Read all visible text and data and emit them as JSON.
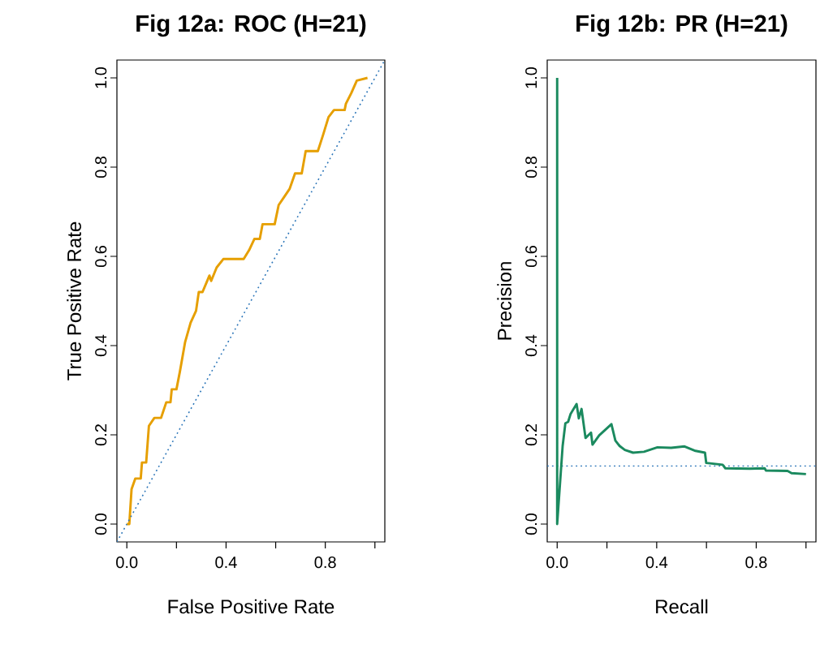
{
  "chart_data": [
    {
      "type": "line",
      "title": "Fig 12a: ROC (H=21)",
      "xlabel": "False Positive Rate",
      "ylabel": "True Positive Rate",
      "xlim": [
        -0.04,
        1.04
      ],
      "ylim": [
        -0.04,
        1.04
      ],
      "xticks": [
        {
          "value": 0,
          "label": "0.0"
        },
        {
          "value": 0.2,
          "label": null
        },
        {
          "value": 0.4,
          "label": "0.4"
        },
        {
          "value": 0.6,
          "label": null
        },
        {
          "value": 0.8,
          "label": "0.8"
        },
        {
          "value": 1,
          "label": null
        }
      ],
      "yticks": [
        {
          "value": 0,
          "label": "0.0"
        },
        {
          "value": 0.2,
          "label": "0.2"
        },
        {
          "value": 0.4,
          "label": "0.4"
        },
        {
          "value": 0.6,
          "label": "0.6"
        },
        {
          "value": 0.8,
          "label": "0.8"
        },
        {
          "value": 1,
          "label": "1.0"
        }
      ],
      "series": [
        {
          "color": "#e69f00",
          "line_style": "solid",
          "x": [
            0,
            0.01,
            0.019,
            0.034,
            0.056,
            0.061,
            0.078,
            0.089,
            0.111,
            0.138,
            0.159,
            0.176,
            0.181,
            0.2,
            0.214,
            0.235,
            0.257,
            0.279,
            0.29,
            0.305,
            0.333,
            0.34,
            0.362,
            0.389,
            0.471,
            0.493,
            0.514,
            0.536,
            0.547,
            0.596,
            0.612,
            0.634,
            0.656,
            0.678,
            0.705,
            0.721,
            0.77,
            0.791,
            0.813,
            0.835,
            0.878,
            0.883,
            0.905,
            0.927,
            0.97
          ],
          "values": [
            0,
            0,
            0.078,
            0.102,
            0.102,
            0.138,
            0.138,
            0.22,
            0.238,
            0.238,
            0.273,
            0.273,
            0.302,
            0.302,
            0.342,
            0.408,
            0.451,
            0.478,
            0.52,
            0.52,
            0.557,
            0.545,
            0.575,
            0.594,
            0.594,
            0.614,
            0.639,
            0.639,
            0.672,
            0.672,
            0.715,
            0.733,
            0.751,
            0.786,
            0.786,
            0.836,
            0.836,
            0.872,
            0.912,
            0.928,
            0.928,
            0.942,
            0.966,
            0.994,
            1.0
          ]
        },
        {
          "color": "#2b75b8",
          "line_style": "dotted",
          "x": [
            -0.04,
            1.04
          ],
          "values": [
            -0.04,
            1.04
          ]
        }
      ]
    },
    {
      "type": "line",
      "title": "Fig 12b: PR (H=21)",
      "xlabel": "Recall",
      "ylabel": "Precision",
      "xlim": [
        -0.04,
        1.04
      ],
      "ylim": [
        -0.04,
        1.04
      ],
      "xticks": [
        {
          "value": 0,
          "label": "0.0"
        },
        {
          "value": 0.2,
          "label": null
        },
        {
          "value": 0.4,
          "label": "0.4"
        },
        {
          "value": 0.6,
          "label": null
        },
        {
          "value": 0.8,
          "label": "0.8"
        },
        {
          "value": 1,
          "label": null
        }
      ],
      "yticks": [
        {
          "value": 0,
          "label": "0.0"
        },
        {
          "value": 0.2,
          "label": "0.2"
        },
        {
          "value": 0.4,
          "label": "0.4"
        },
        {
          "value": 0.6,
          "label": "0.6"
        },
        {
          "value": 0.8,
          "label": "0.8"
        },
        {
          "value": 1,
          "label": "1.0"
        }
      ],
      "ref_lines": [
        {
          "axis": "y",
          "value": 0.13,
          "color": "#2b75b8",
          "line_style": "dotted"
        }
      ],
      "series": [
        {
          "color": "#1b8a5f",
          "line_style": "solid",
          "x": [
            0,
            0,
            0.022,
            0.033,
            0.044,
            0.054,
            0.078,
            0.087,
            0.098,
            0.114,
            0.136,
            0.142,
            0.169,
            0.218,
            0.234,
            0.251,
            0.272,
            0.305,
            0.349,
            0.403,
            0.458,
            0.512,
            0.556,
            0.594,
            0.599,
            0.665,
            0.676,
            0.774,
            0.834,
            0.839,
            0.926,
            0.942,
            1.0
          ],
          "values": [
            1.0,
            0,
            0.175,
            0.226,
            0.229,
            0.247,
            0.269,
            0.237,
            0.258,
            0.193,
            0.205,
            0.178,
            0.199,
            0.224,
            0.187,
            0.175,
            0.166,
            0.16,
            0.162,
            0.172,
            0.171,
            0.174,
            0.164,
            0.16,
            0.137,
            0.133,
            0.125,
            0.124,
            0.125,
            0.12,
            0.119,
            0.114,
            0.112
          ]
        }
      ]
    }
  ]
}
